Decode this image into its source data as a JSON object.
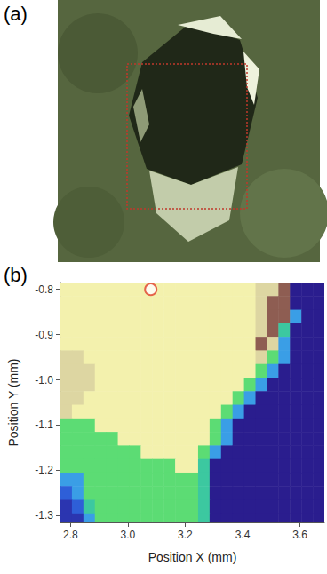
{
  "chart_data": {
    "type": "heatmap",
    "panel_labels": [
      "(a)",
      "(b)"
    ],
    "x_label": "Position X (mm)",
    "y_label": "Position Y (mm)",
    "x": [
      2.785,
      2.825,
      2.865,
      2.905,
      2.945,
      2.985,
      3.025,
      3.065,
      3.105,
      3.145,
      3.185,
      3.225,
      3.265,
      3.305,
      3.345,
      3.385,
      3.425,
      3.465,
      3.505,
      3.545,
      3.585,
      3.625,
      3.665
    ],
    "y": [
      -0.8,
      -0.83,
      -0.86,
      -0.89,
      -0.92,
      -0.95,
      -0.98,
      -1.01,
      -1.04,
      -1.07,
      -1.1,
      -1.13,
      -1.16,
      -1.19,
      -1.22,
      -1.25,
      -1.28,
      -1.31
    ],
    "cells": [
      [
        7,
        7,
        7,
        7,
        7,
        7,
        7,
        7,
        7,
        7,
        7,
        7,
        7,
        7,
        7,
        7,
        7,
        6,
        6,
        9,
        0,
        0,
        0
      ],
      [
        7,
        7,
        7,
        7,
        7,
        7,
        7,
        7,
        7,
        7,
        7,
        7,
        7,
        7,
        7,
        7,
        7,
        6,
        9,
        9,
        0,
        0,
        0
      ],
      [
        7,
        7,
        7,
        7,
        7,
        7,
        7,
        7,
        7,
        7,
        7,
        7,
        7,
        7,
        7,
        7,
        7,
        6,
        9,
        9,
        3,
        0,
        0
      ],
      [
        7,
        7,
        7,
        7,
        7,
        7,
        7,
        7,
        7,
        7,
        7,
        7,
        7,
        7,
        7,
        7,
        7,
        6,
        9,
        4,
        0,
        0,
        0
      ],
      [
        7,
        7,
        7,
        7,
        7,
        7,
        7,
        7,
        7,
        7,
        7,
        7,
        7,
        7,
        7,
        7,
        7,
        9,
        6,
        3,
        0,
        0,
        0
      ],
      [
        6,
        6,
        7,
        7,
        7,
        7,
        7,
        7,
        7,
        7,
        7,
        7,
        7,
        7,
        7,
        7,
        7,
        6,
        5,
        3,
        0,
        0,
        0
      ],
      [
        6,
        6,
        6,
        7,
        7,
        7,
        7,
        7,
        7,
        7,
        7,
        7,
        7,
        7,
        7,
        7,
        7,
        5,
        3,
        0,
        0,
        0,
        0
      ],
      [
        6,
        6,
        6,
        7,
        7,
        7,
        7,
        7,
        7,
        7,
        7,
        7,
        7,
        7,
        7,
        7,
        5,
        3,
        0,
        0,
        0,
        0,
        0
      ],
      [
        6,
        6,
        7,
        7,
        7,
        7,
        7,
        7,
        7,
        7,
        7,
        7,
        7,
        7,
        7,
        5,
        3,
        0,
        0,
        0,
        0,
        0,
        0
      ],
      [
        6,
        7,
        7,
        7,
        7,
        7,
        7,
        7,
        7,
        7,
        7,
        7,
        7,
        7,
        5,
        3,
        0,
        0,
        0,
        0,
        0,
        0,
        0
      ],
      [
        5,
        5,
        5,
        7,
        7,
        7,
        7,
        7,
        7,
        7,
        7,
        7,
        7,
        5,
        3,
        0,
        0,
        0,
        0,
        0,
        0,
        0,
        0
      ],
      [
        5,
        5,
        5,
        5,
        5,
        7,
        7,
        7,
        7,
        7,
        7,
        7,
        7,
        5,
        3,
        0,
        0,
        0,
        0,
        0,
        0,
        0,
        0
      ],
      [
        5,
        5,
        5,
        5,
        5,
        5,
        5,
        7,
        7,
        7,
        7,
        7,
        5,
        3,
        0,
        0,
        0,
        0,
        0,
        0,
        0,
        0,
        0
      ],
      [
        5,
        5,
        5,
        5,
        5,
        5,
        5,
        5,
        5,
        5,
        7,
        7,
        4,
        0,
        0,
        0,
        0,
        0,
        0,
        0,
        0,
        0,
        0
      ],
      [
        3,
        3,
        5,
        5,
        5,
        5,
        5,
        5,
        5,
        5,
        5,
        5,
        4,
        0,
        0,
        0,
        0,
        0,
        0,
        0,
        0,
        0,
        0
      ],
      [
        2,
        3,
        5,
        5,
        5,
        5,
        5,
        5,
        5,
        5,
        5,
        5,
        4,
        0,
        0,
        0,
        0,
        0,
        0,
        0,
        0,
        0,
        0
      ],
      [
        1,
        2,
        4,
        5,
        5,
        5,
        5,
        5,
        5,
        5,
        5,
        5,
        4,
        0,
        0,
        0,
        0,
        0,
        0,
        0,
        0,
        0,
        0
      ],
      [
        1,
        1,
        3,
        5,
        5,
        5,
        5,
        5,
        5,
        5,
        5,
        5,
        4,
        0,
        0,
        0,
        0,
        0,
        0,
        0,
        0,
        0,
        0
      ]
    ],
    "zlim": [
      0,
      9
    ],
    "xlim": [
      2.765,
      3.685
    ],
    "ylim": [
      -1.315,
      -0.785
    ],
    "xticks": [
      2.8,
      {
        "value": 3,
        "label": "3.0"
      },
      3.2,
      3.4,
      3.6
    ],
    "yticks": [
      -0.8,
      -0.9,
      {
        "value": -1,
        "label": "-1.0"
      },
      -1.1,
      -1.2,
      -1.3
    ],
    "grid": false,
    "highlight": {
      "x": 3.08,
      "y": -0.8,
      "color": "#e0402a",
      "marker": "circle"
    }
  }
}
